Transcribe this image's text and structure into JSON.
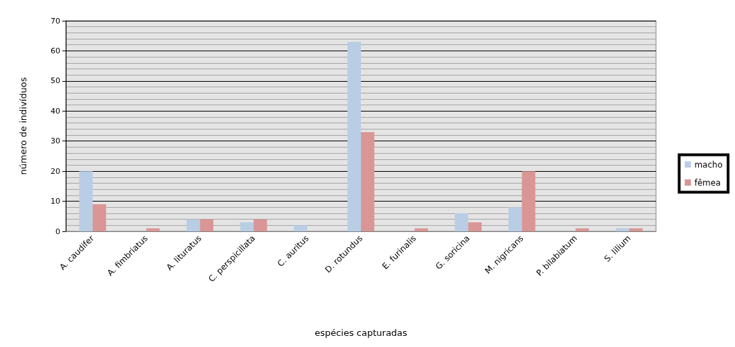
{
  "chart_data": {
    "type": "bar",
    "xlabel": "espécies capturadas",
    "ylabel": "número de indivíduos",
    "categories": [
      "A. caudifer",
      "A. fimbriatus",
      "A. lituratus",
      "C. perspicillata",
      "C. auritus",
      "D. rotundus",
      "E. furinalis",
      "G. soricina",
      "M. nigricans",
      "P. bilabiatum",
      "S. lilium"
    ],
    "series": [
      {
        "name": "macho",
        "color": "#b9cde5",
        "values": [
          20,
          0,
          4,
          3,
          2,
          63,
          0,
          6,
          8,
          0,
          1
        ]
      },
      {
        "name": "fêmea",
        "color": "#d99694",
        "values": [
          9,
          1,
          4,
          4,
          0,
          33,
          1,
          3,
          20,
          1,
          1
        ]
      }
    ],
    "ylim": [
      0,
      70
    ],
    "yticks": [
      0,
      10,
      20,
      30,
      40,
      50,
      60,
      70
    ],
    "grid": "y",
    "legend": "right"
  }
}
